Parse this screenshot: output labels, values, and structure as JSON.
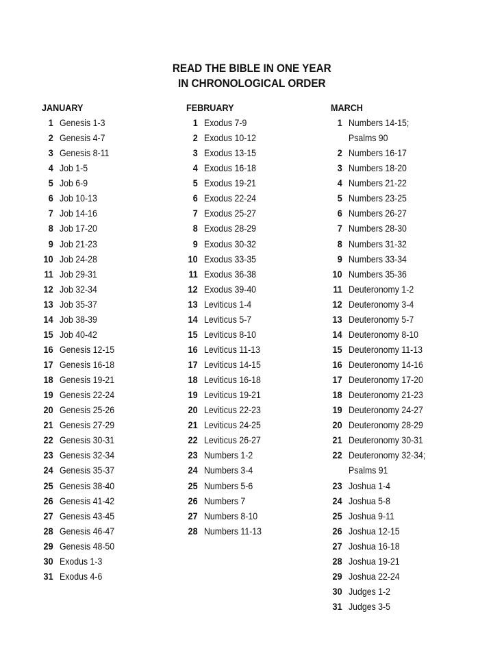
{
  "title": {
    "line1": "READ THE BIBLE IN ONE YEAR",
    "line2": "IN CHRONOLOGICAL ORDER"
  },
  "months": [
    {
      "name": "JANUARY",
      "rows": [
        {
          "n": "1",
          "text": "Genesis 1-3"
        },
        {
          "n": "2",
          "text": "Genesis 4-7"
        },
        {
          "n": "3",
          "text": "Genesis 8-11"
        },
        {
          "n": "4",
          "text": "Job 1-5"
        },
        {
          "n": "5",
          "text": "Job 6-9"
        },
        {
          "n": "6",
          "text": "Job 10-13"
        },
        {
          "n": "7",
          "text": "Job 14-16"
        },
        {
          "n": "8",
          "text": "Job 17-20"
        },
        {
          "n": "9",
          "text": "Job 21-23"
        },
        {
          "n": "10",
          "text": "Job 24-28"
        },
        {
          "n": "11",
          "text": "Job 29-31"
        },
        {
          "n": "12",
          "text": "Job 32-34"
        },
        {
          "n": "13",
          "text": "Job 35-37"
        },
        {
          "n": "14",
          "text": "Job 38-39"
        },
        {
          "n": "15",
          "text": "Job 40-42"
        },
        {
          "n": "16",
          "text": "Genesis 12-15"
        },
        {
          "n": "17",
          "text": "Genesis 16-18"
        },
        {
          "n": "18",
          "text": "Genesis 19-21"
        },
        {
          "n": "19",
          "text": "Genesis 22-24"
        },
        {
          "n": "20",
          "text": "Genesis 25-26"
        },
        {
          "n": "21",
          "text": "Genesis 27-29"
        },
        {
          "n": "22",
          "text": "Genesis 30-31"
        },
        {
          "n": "23",
          "text": "Genesis 32-34"
        },
        {
          "n": "24",
          "text": "Genesis 35-37"
        },
        {
          "n": "25",
          "text": "Genesis 38-40"
        },
        {
          "n": "26",
          "text": "Genesis 41-42"
        },
        {
          "n": "27",
          "text": "Genesis 43-45"
        },
        {
          "n": "28",
          "text": "Genesis 46-47"
        },
        {
          "n": "29",
          "text": "Genesis 48-50"
        },
        {
          "n": "30",
          "text": "Exodus 1-3"
        },
        {
          "n": "31",
          "text": "Exodus 4-6"
        }
      ]
    },
    {
      "name": "FEBRUARY",
      "rows": [
        {
          "n": "1",
          "text": "Exodus 7-9"
        },
        {
          "n": "2",
          "text": "Exodus 10-12"
        },
        {
          "n": "3",
          "text": "Exodus 13-15"
        },
        {
          "n": "4",
          "text": "Exodus 16-18"
        },
        {
          "n": "5",
          "text": "Exodus 19-21"
        },
        {
          "n": "6",
          "text": "Exodus 22-24"
        },
        {
          "n": "7",
          "text": "Exodus 25-27"
        },
        {
          "n": "8",
          "text": "Exodus 28-29"
        },
        {
          "n": "9",
          "text": "Exodus 30-32"
        },
        {
          "n": "10",
          "text": "Exodus 33-35"
        },
        {
          "n": "11",
          "text": "Exodus 36-38"
        },
        {
          "n": "12",
          "text": "Exodus 39-40"
        },
        {
          "n": "13",
          "text": "Leviticus 1-4"
        },
        {
          "n": "14",
          "text": "Leviticus 5-7"
        },
        {
          "n": "15",
          "text": "Leviticus 8-10"
        },
        {
          "n": "16",
          "text": "Leviticus 11-13"
        },
        {
          "n": "17",
          "text": "Leviticus 14-15"
        },
        {
          "n": "18",
          "text": "Leviticus 16-18"
        },
        {
          "n": "19",
          "text": "Leviticus 19-21"
        },
        {
          "n": "20",
          "text": "Leviticus 22-23"
        },
        {
          "n": "21",
          "text": "Leviticus 24-25"
        },
        {
          "n": "22",
          "text": "Leviticus 26-27"
        },
        {
          "n": "23",
          "text": "Numbers 1-2"
        },
        {
          "n": "24",
          "text": "Numbers 3-4"
        },
        {
          "n": "25",
          "text": "Numbers 5-6"
        },
        {
          "n": "26",
          "text": "Numbers 7"
        },
        {
          "n": "27",
          "text": "Numbers 8-10"
        },
        {
          "n": "28",
          "text": "Numbers 11-13"
        }
      ]
    },
    {
      "name": "MARCH",
      "rows": [
        {
          "n": "1",
          "text": "Numbers 14-15;"
        },
        {
          "n": "",
          "text": "Psalms 90"
        },
        {
          "n": "2",
          "text": "Numbers 16-17"
        },
        {
          "n": "3",
          "text": "Numbers 18-20"
        },
        {
          "n": "4",
          "text": "Numbers 21-22"
        },
        {
          "n": "5",
          "text": "Numbers 23-25"
        },
        {
          "n": "6",
          "text": "Numbers 26-27"
        },
        {
          "n": "7",
          "text": "Numbers 28-30"
        },
        {
          "n": "8",
          "text": "Numbers 31-32"
        },
        {
          "n": "9",
          "text": "Numbers 33-34"
        },
        {
          "n": "10",
          "text": "Numbers 35-36"
        },
        {
          "n": "11",
          "text": "Deuteronomy 1-2"
        },
        {
          "n": "12",
          "text": "Deuteronomy 3-4"
        },
        {
          "n": "13",
          "text": "Deuteronomy 5-7"
        },
        {
          "n": "14",
          "text": "Deuteronomy 8-10"
        },
        {
          "n": "15",
          "text": "Deuteronomy 11-13"
        },
        {
          "n": "16",
          "text": "Deuteronomy 14-16"
        },
        {
          "n": "17",
          "text": "Deuteronomy 17-20"
        },
        {
          "n": "18",
          "text": "Deuteronomy 21-23"
        },
        {
          "n": "19",
          "text": "Deuteronomy 24-27"
        },
        {
          "n": "20",
          "text": "Deuteronomy 28-29"
        },
        {
          "n": "21",
          "text": "Deuteronomy 30-31"
        },
        {
          "n": "22",
          "text": "Deuteronomy 32-34;"
        },
        {
          "n": "",
          "text": "Psalms 91"
        },
        {
          "n": "23",
          "text": "Joshua 1-4"
        },
        {
          "n": "24",
          "text": "Joshua 5-8"
        },
        {
          "n": "25",
          "text": "Joshua 9-11"
        },
        {
          "n": "26",
          "text": "Joshua 12-15"
        },
        {
          "n": "27",
          "text": "Joshua 16-18"
        },
        {
          "n": "28",
          "text": "Joshua 19-21"
        },
        {
          "n": "29",
          "text": "Joshua 22-24"
        },
        {
          "n": "30",
          "text": "Judges 1-2"
        },
        {
          "n": "31",
          "text": "Judges 3-5"
        }
      ]
    }
  ]
}
